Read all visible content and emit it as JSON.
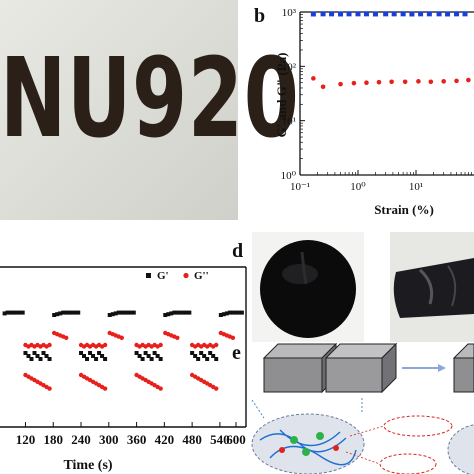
{
  "panel_a": {
    "handwritten_text": "NU920"
  },
  "panel_letters": {
    "b": "b",
    "d": "d",
    "e": "e"
  },
  "chart_data": [
    {
      "type": "scatter",
      "panel": "b",
      "ylabel": "G' and G\" (Pa)",
      "xlabel": "Strain (%)",
      "x_scale": "log",
      "y_scale": "log",
      "xlim": [
        0.1,
        100
      ],
      "ylim": [
        1,
        1000
      ],
      "x_ticks": [
        "10⁻¹",
        "10⁰",
        "10¹"
      ],
      "y_ticks": [
        "10⁰",
        "10¹",
        "10²",
        "10³"
      ],
      "series": [
        {
          "marker": "square",
          "color": "#1a3fd8",
          "x": [
            0.17,
            0.25,
            0.35,
            0.5,
            0.7,
            1.0,
            1.4,
            2.0,
            3.0,
            4.2,
            6.0,
            8.5,
            12,
            17,
            25,
            35,
            50,
            70
          ],
          "y": [
            920,
            925,
            925,
            920,
            925,
            925,
            925,
            920,
            925,
            925,
            925,
            920,
            925,
            925,
            925,
            920,
            925,
            925
          ]
        },
        {
          "marker": "circle",
          "color": "#e8201c",
          "x": [
            0.17,
            0.25,
            0.5,
            0.85,
            1.4,
            2.3,
            3.8,
            6.5,
            11,
            18,
            30,
            50,
            80
          ],
          "y": [
            60,
            42,
            47,
            49,
            50,
            51,
            52,
            52,
            53,
            52,
            53,
            54,
            56
          ]
        }
      ],
      "grid": false,
      "legend": "none"
    },
    {
      "type": "scatter",
      "panel": "c",
      "xlabel": "Time (s)",
      "x_ticks": [
        120,
        180,
        240,
        300,
        360,
        420,
        480,
        540,
        600
      ],
      "xlim": [
        65,
        605
      ],
      "legend": "top-right",
      "series": [
        {
          "name": "G'",
          "marker": "square",
          "color": "#111111"
        },
        {
          "name": "G''",
          "marker": "circle",
          "color": "#e8201c"
        }
      ]
    }
  ]
}
